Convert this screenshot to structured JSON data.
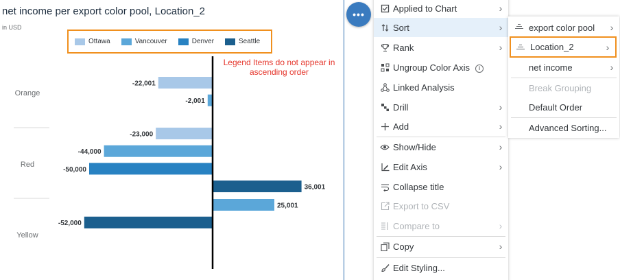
{
  "chart_panel": {
    "title": "net income per export color pool, Location_2",
    "subtitle": "in USD",
    "annotation": "Legend Items do not appear in ascending order"
  },
  "chart_data": {
    "type": "bar",
    "orientation": "horizontal",
    "title": "net income per export color pool, Location_2",
    "subtitle": "in USD",
    "categories": [
      "Orange",
      "Red",
      "Yellow"
    ],
    "series": [
      {
        "name": "Ottawa",
        "color": "#a8c8e8",
        "values": [
          -22001,
          -23000,
          null
        ]
      },
      {
        "name": "Vancouver",
        "color": "#5ba7d9",
        "values": [
          -2001,
          -44000,
          25001
        ]
      },
      {
        "name": "Denver",
        "color": "#2882c2",
        "values": [
          null,
          -50000,
          null
        ]
      },
      {
        "name": "Seattle",
        "color": "#1b5f8e",
        "values": [
          null,
          36001,
          -52000
        ]
      }
    ],
    "data_labels": true,
    "legend_position": "top",
    "grid": false
  },
  "more_button": {
    "label": "•••"
  },
  "menu": {
    "items": [
      {
        "label": "Applied to Chart",
        "icon": "checkbox-icon",
        "chevron": "›",
        "state": "normal"
      },
      {
        "label": "Sort",
        "icon": "sort-icon",
        "chevron": "›",
        "state": "active"
      },
      {
        "label": "Rank",
        "icon": "trophy-icon",
        "chevron": "›",
        "state": "normal"
      },
      {
        "label": "Ungroup Color Axis",
        "icon": "ungroup-icon",
        "chevron": "",
        "state": "normal",
        "info": "i"
      },
      {
        "label": "Linked Analysis",
        "icon": "linked-analysis-icon",
        "chevron": "",
        "state": "normal"
      },
      {
        "label": "Drill",
        "icon": "drill-icon",
        "chevron": "›",
        "state": "normal"
      },
      {
        "label": "Add",
        "icon": "add-icon",
        "chevron": "›",
        "state": "normal"
      },
      {
        "label": "Show/Hide",
        "icon": "eye-icon",
        "chevron": "›",
        "state": "normal"
      },
      {
        "label": "Edit Axis",
        "icon": "edit-axis-icon",
        "chevron": "›",
        "state": "normal"
      },
      {
        "label": "Collapse title",
        "icon": "collapse-icon",
        "chevron": "",
        "state": "normal"
      },
      {
        "label": "Export to CSV",
        "icon": "export-icon",
        "chevron": "",
        "state": "disabled"
      },
      {
        "label": "Compare to",
        "icon": "compare-icon",
        "chevron": "›",
        "state": "disabled"
      },
      {
        "label": "Copy",
        "icon": "copy-icon",
        "chevron": "›",
        "state": "normal"
      },
      {
        "label": "Edit Styling...",
        "icon": "brush-icon",
        "chevron": "",
        "state": "normal"
      }
    ]
  },
  "submenu": {
    "items": [
      {
        "label": "export color pool",
        "icon": "sort-dimension-icon",
        "chevron": "›",
        "state": "normal"
      },
      {
        "label": "Location_2",
        "icon": "sort-dimension-icon",
        "chevron": "›",
        "state": "highlight"
      },
      {
        "label": "net income",
        "icon": "",
        "chevron": "›",
        "state": "normal"
      },
      {
        "label": "Break Grouping",
        "icon": "",
        "chevron": "",
        "state": "disabled"
      },
      {
        "label": "Default Order",
        "icon": "",
        "chevron": "",
        "state": "normal"
      },
      {
        "label": "Advanced Sorting...",
        "icon": "",
        "chevron": "",
        "state": "normal"
      }
    ]
  }
}
